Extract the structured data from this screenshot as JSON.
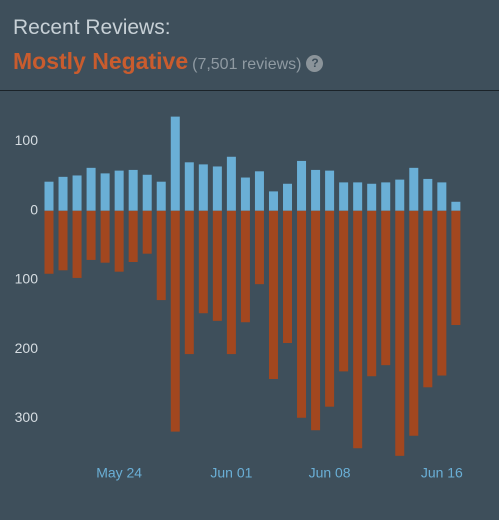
{
  "header": {
    "title": "Recent Reviews:",
    "rating": "Mostly Negative",
    "count": "(7,501 reviews)",
    "help": "?"
  },
  "chart_data": {
    "type": "bar",
    "categories": [
      null,
      null,
      null,
      null,
      null,
      "May 24",
      null,
      null,
      null,
      null,
      null,
      null,
      null,
      "Jun 01",
      null,
      null,
      null,
      null,
      null,
      null,
      "Jun 08",
      null,
      null,
      null,
      null,
      null,
      null,
      null,
      "Jun 16",
      null
    ],
    "series": [
      {
        "color": "#6aafd6",
        "values": [
          42,
          49,
          51,
          62,
          54,
          58,
          59,
          52,
          42,
          136,
          70,
          67,
          64,
          78,
          48,
          57,
          28,
          39,
          72,
          59,
          58,
          41,
          41,
          39,
          41,
          45,
          62,
          46,
          41,
          13
        ]
      },
      {
        "color": "#a2471f",
        "values": [
          -91,
          -86,
          -97,
          -71,
          -75,
          -88,
          -74,
          -62,
          -129,
          -319,
          -207,
          -148,
          -159,
          -207,
          -161,
          -106,
          -243,
          -191,
          -299,
          -317,
          -283,
          -232,
          -343,
          -239,
          -223,
          -354,
          -325,
          -255,
          -238,
          -165
        ]
      }
    ],
    "ylim": [
      -360,
      160
    ],
    "yticks": [
      {
        "value": 100,
        "label": "100"
      },
      0,
      {
        "value": -100,
        "label": "100"
      },
      {
        "value": -200,
        "label": "200"
      },
      {
        "value": -300,
        "label": "300"
      }
    ],
    "grid": false
  }
}
